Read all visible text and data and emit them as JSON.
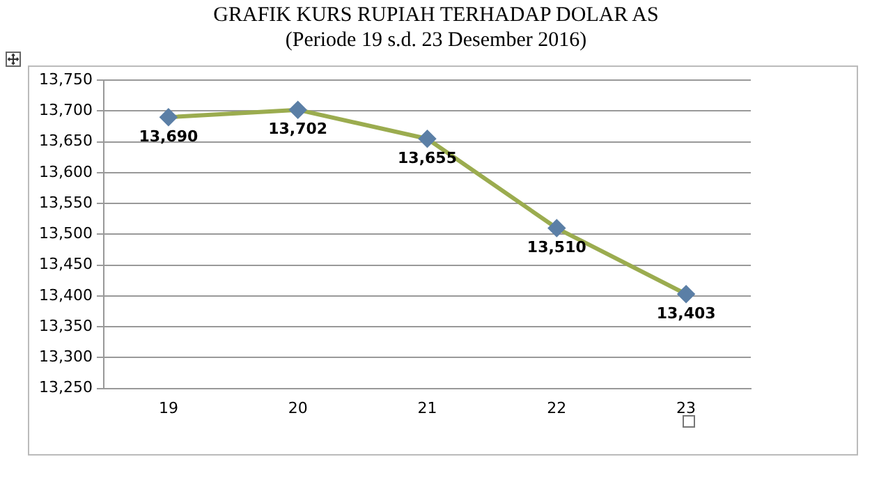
{
  "chart_data": {
    "type": "line",
    "title": "GRAFIK KURS RUPIAH TERHADAP DOLAR AS",
    "subtitle": "(Periode 19 s.d. 23 Desember 2016)",
    "categories": [
      "19",
      "20",
      "21",
      "22",
      "23"
    ],
    "series": [
      {
        "color": "#9bac4f",
        "colors": [
          "#5b7fa6",
          "#5b7fa6",
          "#5b7fa6",
          "#5b7fa6",
          "#5b7fa6"
        ],
        "values": [
          13690,
          13702,
          13655,
          13510,
          13403
        ],
        "value_labels": [
          "13,690",
          "13,702",
          "13,655",
          "13,510",
          "13,403"
        ]
      }
    ],
    "ylim": [
      13250,
      13750
    ],
    "yticks": [
      {
        "value": 13250,
        "label": "13,250"
      },
      {
        "value": 13300,
        "label": "13,300"
      },
      {
        "value": 13350,
        "label": "13,350"
      },
      {
        "value": 13400,
        "label": "13,400"
      },
      {
        "value": 13450,
        "label": "13,450"
      },
      {
        "value": 13500,
        "label": "13,500"
      },
      {
        "value": 13550,
        "label": "13,550"
      },
      {
        "value": 13600,
        "label": "13,600"
      },
      {
        "value": 13650,
        "label": "13,650"
      },
      {
        "value": 13700,
        "label": "13,700"
      },
      {
        "value": 13750,
        "label": "13,750"
      }
    ],
    "grid": "y",
    "legend": false,
    "marker": "diamond",
    "line_style": "solid"
  }
}
